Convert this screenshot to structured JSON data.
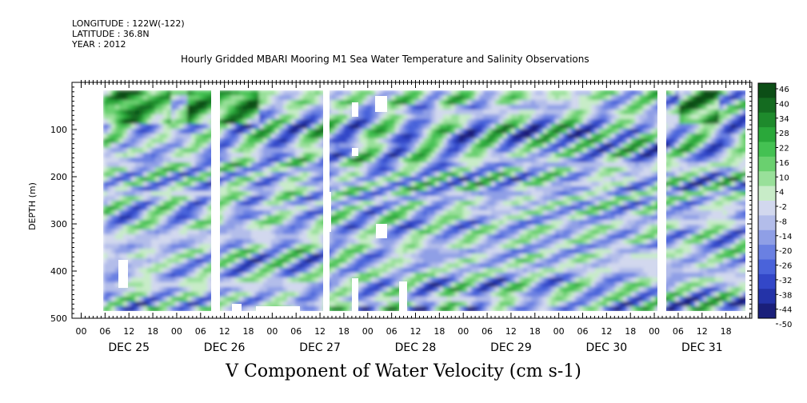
{
  "header": {
    "longitude": "LONGITUDE : 122W(-122)",
    "latitude": "LATITUDE : 36.8N",
    "year": "YEAR : 2012",
    "title": "Hourly Gridded MBARI Mooring M1 Sea Water Temperature and Salinity Observations"
  },
  "chart_data": {
    "type": "heatmap",
    "title": "Hourly Gridded MBARI Mooring M1 Sea Water Temperature and Salinity Observations",
    "xlabel": "",
    "ylabel": "DEPTH (m)",
    "variable_label": "V Component of Water Velocity (cm s-1)",
    "x_range_hours": [
      0,
      168
    ],
    "x_hour_ticks": [
      "00",
      "06",
      "12",
      "18",
      "00",
      "06",
      "12",
      "18",
      "00",
      "06",
      "12",
      "18",
      "00",
      "06",
      "12",
      "18",
      "00",
      "06",
      "12",
      "18",
      "00",
      "06",
      "12",
      "18",
      "00",
      "06",
      "12",
      "18"
    ],
    "x_day_labels": [
      "DEC 25",
      "DEC 26",
      "DEC 27",
      "DEC 28",
      "DEC 29",
      "DEC 30",
      "DEC 31"
    ],
    "y_range": [
      0,
      500
    ],
    "y_inverted": true,
    "y_ticks": [
      "100",
      "200",
      "300",
      "400",
      "500"
    ],
    "colorbar": {
      "labels": [
        "46",
        "40",
        "34",
        "28",
        "22",
        "16",
        "10",
        "4",
        "-2",
        "-8",
        "-14",
        "-20",
        "-26",
        "-32",
        "-38",
        "-44",
        "-50"
      ],
      "range": [
        -50,
        50
      ],
      "colors_low_to_high": [
        "#1a1f7a",
        "#2433a8",
        "#3347c8",
        "#4a63da",
        "#6a80e2",
        "#8f9fe6",
        "#b3bdea",
        "#d2d8ee",
        "#c8ecc8",
        "#99e09a",
        "#6ad06f",
        "#44c152",
        "#2aa83a",
        "#1e8a2c",
        "#146b20",
        "#0c4e16"
      ]
    },
    "data_gaps_hours": [
      [
        0,
        3.5
      ],
      [
        56,
        57.5
      ],
      [
        109,
        110.5
      ],
      [
        164,
        168
      ]
    ],
    "field_description_note": ""
  }
}
